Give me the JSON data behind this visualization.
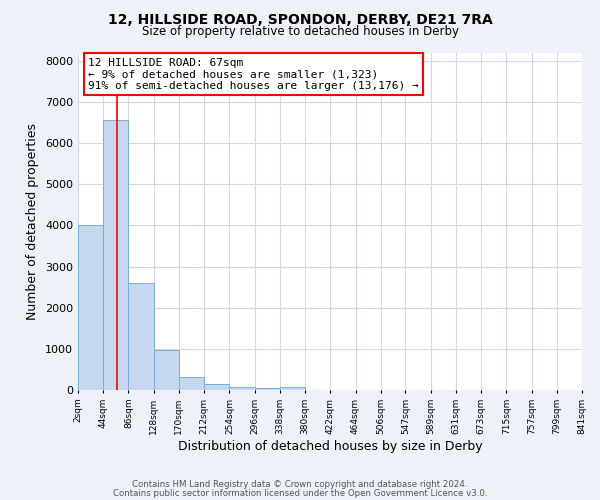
{
  "title": "12, HILLSIDE ROAD, SPONDON, DERBY, DE21 7RA",
  "subtitle": "Size of property relative to detached houses in Derby",
  "xlabel": "Distribution of detached houses by size in Derby",
  "ylabel": "Number of detached properties",
  "bins": [
    2,
    44,
    86,
    128,
    170,
    212,
    254,
    296,
    338,
    380,
    422,
    464,
    506,
    547,
    589,
    631,
    673,
    715,
    757,
    799,
    841
  ],
  "counts": [
    4000,
    6550,
    2600,
    970,
    320,
    140,
    70,
    60,
    70,
    0,
    0,
    0,
    0,
    0,
    0,
    0,
    0,
    0,
    0,
    0
  ],
  "bar_color": "#C5D8F0",
  "bar_edge_color": "#7AAEDC",
  "property_line_x": 67,
  "property_line_color": "red",
  "annotation_line1": "12 HILLSIDE ROAD: 67sqm",
  "annotation_line2": "← 9% of detached houses are smaller (1,323)",
  "annotation_line3": "91% of semi-detached houses are larger (13,176) →",
  "annotation_box_color": "white",
  "annotation_box_edge": "red",
  "ylim": [
    0,
    8200
  ],
  "yticks": [
    0,
    1000,
    2000,
    3000,
    4000,
    5000,
    6000,
    7000,
    8000
  ],
  "tick_labels": [
    "2sqm",
    "44sqm",
    "86sqm",
    "128sqm",
    "170sqm",
    "212sqm",
    "254sqm",
    "296sqm",
    "338sqm",
    "380sqm",
    "422sqm",
    "464sqm",
    "506sqm",
    "547sqm",
    "589sqm",
    "631sqm",
    "673sqm",
    "715sqm",
    "757sqm",
    "799sqm",
    "841sqm"
  ],
  "footer1": "Contains HM Land Registry data © Crown copyright and database right 2024.",
  "footer2": "Contains public sector information licensed under the Open Government Licence v3.0.",
  "fig_bg_color": "#EEF2F8",
  "plot_bg_color": "#FFFFFF",
  "grid_color": "#D0D8E8",
  "title_fontsize": 10,
  "subtitle_fontsize": 8.5,
  "annotation_fontsize": 8.0
}
